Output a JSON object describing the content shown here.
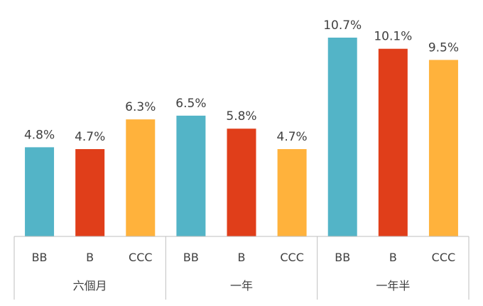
{
  "chart_data": {
    "type": "bar",
    "title": "",
    "xlabel": "",
    "ylabel": "",
    "ylim": [
      0,
      11.5
    ],
    "grid": false,
    "legend": "none",
    "groups": [
      {
        "label": "六個月",
        "bars": [
          {
            "label": "BB",
            "value": 4.8,
            "text": "4.8%",
            "color": "#53B4C7"
          },
          {
            "label": "B",
            "value": 4.7,
            "text": "4.7%",
            "color": "#E03E1A"
          },
          {
            "label": "CCC",
            "value": 6.3,
            "text": "6.3%",
            "color": "#FFB23C"
          }
        ]
      },
      {
        "label": "一年",
        "bars": [
          {
            "label": "BB",
            "value": 6.5,
            "text": "6.5%",
            "color": "#53B4C7"
          },
          {
            "label": "B",
            "value": 5.8,
            "text": "5.8%",
            "color": "#E03E1A"
          },
          {
            "label": "CCC",
            "value": 4.7,
            "text": "4.7%",
            "color": "#FFB23C"
          }
        ]
      },
      {
        "label": "一年半",
        "bars": [
          {
            "label": "BB",
            "value": 10.7,
            "text": "10.7%",
            "color": "#53B4C7"
          },
          {
            "label": "B",
            "value": 10.1,
            "text": "10.1%",
            "color": "#E03E1A"
          },
          {
            "label": "CCC",
            "value": 9.5,
            "text": "9.5%",
            "color": "#FFB23C"
          }
        ]
      }
    ]
  }
}
